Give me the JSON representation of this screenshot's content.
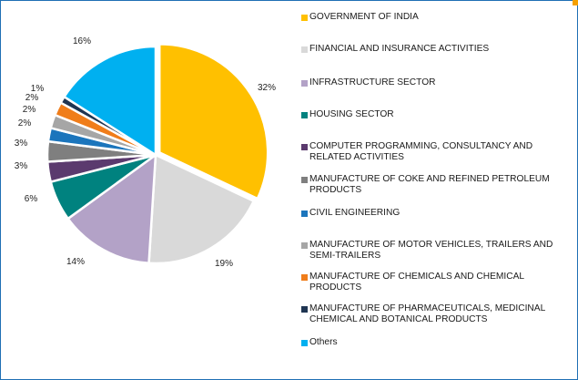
{
  "chart_data": {
    "type": "pie",
    "slices": [
      {
        "label": "GOVERNMENT OF INDIA",
        "value": 32,
        "display": "32%",
        "color": "#FFC000"
      },
      {
        "label": "FINANCIAL AND INSURANCE ACTIVITIES",
        "value": 19,
        "display": "19%",
        "color": "#D9D9D9"
      },
      {
        "label": "INFRASTRUCTURE SECTOR",
        "value": 14,
        "display": "14%",
        "color": "#B3A2C7"
      },
      {
        "label": "HOUSING SECTOR",
        "value": 6,
        "display": "6%",
        "color": "#00827F"
      },
      {
        "label": "COMPUTER PROGRAMMING, CONSULTANCY AND RELATED ACTIVITIES",
        "value": 3,
        "display": "3%",
        "color": "#5B3A6E"
      },
      {
        "label": "MANUFACTURE OF COKE AND REFINED PETROLEUM PRODUCTS",
        "value": 3,
        "display": "3%",
        "color": "#7F7F7F"
      },
      {
        "label": "CIVIL ENGINEERING",
        "value": 2,
        "display": "2%",
        "color": "#1B75BC"
      },
      {
        "label": "MANUFACTURE OF MOTOR VEHICLES, TRAILERS AND SEMI-TRAILERS",
        "value": 2,
        "display": "2%",
        "color": "#A6A6A6"
      },
      {
        "label": "MANUFACTURE OF CHEMICALS AND CHEMICAL PRODUCTS",
        "value": 2,
        "display": "2%",
        "color": "#F07D1A"
      },
      {
        "label": "MANUFACTURE OF PHARMACEUTICALS, MEDICINAL CHEMICAL AND BOTANICAL PRODUCTS",
        "value": 1,
        "display": "1%",
        "color": "#1F3552"
      },
      {
        "label": "Others",
        "value": 16,
        "display": "16%",
        "color": "#00B0F0"
      }
    ],
    "legend_position": "right"
  },
  "accent_colors": {
    "frame": "#1F6FB4",
    "corner": "#F5A000"
  }
}
